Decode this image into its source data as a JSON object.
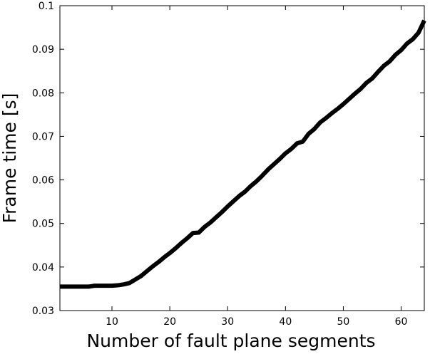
{
  "chart_data": {
    "type": "line",
    "title": "",
    "xlabel": "Number of fault plane segments",
    "ylabel": "Frame time [s]",
    "xlim": [
      1,
      64
    ],
    "ylim": [
      0.03,
      0.1
    ],
    "xticks": [
      10,
      20,
      30,
      40,
      50,
      60
    ],
    "yticks": [
      0.03,
      0.04,
      0.05,
      0.06,
      0.07,
      0.08,
      0.09,
      0.1
    ],
    "ytick_labels": [
      "0.03",
      "0.04",
      "0.05",
      "0.06",
      "0.07",
      "0.08",
      "0.09",
      "0.1"
    ],
    "grid": false,
    "legend": "none",
    "line_color": "#000000",
    "series": [
      {
        "x": [
          1,
          2,
          3,
          4,
          5,
          6,
          7,
          8,
          9,
          10,
          11,
          12,
          13,
          14,
          15,
          16,
          17,
          18,
          19,
          20,
          21,
          22,
          23,
          24,
          25,
          26,
          27,
          28,
          29,
          30,
          31,
          32,
          33,
          34,
          35,
          36,
          37,
          38,
          39,
          40,
          41,
          42,
          43,
          44,
          45,
          46,
          47,
          48,
          49,
          50,
          51,
          52,
          53,
          54,
          55,
          56,
          57,
          58,
          59,
          60,
          61,
          62,
          63,
          64
        ],
        "y": [
          0.0355,
          0.0355,
          0.0355,
          0.0355,
          0.0355,
          0.0355,
          0.0357,
          0.0357,
          0.0357,
          0.0357,
          0.0358,
          0.036,
          0.0363,
          0.0371,
          0.0379,
          0.039,
          0.0401,
          0.0411,
          0.0422,
          0.0432,
          0.0443,
          0.0455,
          0.0466,
          0.0478,
          0.0479,
          0.0492,
          0.0502,
          0.0514,
          0.0526,
          0.0539,
          0.0551,
          0.0563,
          0.0573,
          0.0586,
          0.0597,
          0.061,
          0.0624,
          0.0636,
          0.0648,
          0.0661,
          0.0671,
          0.0684,
          0.0688,
          0.0706,
          0.0717,
          0.0732,
          0.0742,
          0.0753,
          0.0763,
          0.0774,
          0.0786,
          0.0798,
          0.0809,
          0.0823,
          0.0833,
          0.0848,
          0.0862,
          0.0872,
          0.0887,
          0.0898,
          0.0913,
          0.0923,
          0.0938,
          0.0966
        ]
      }
    ]
  }
}
